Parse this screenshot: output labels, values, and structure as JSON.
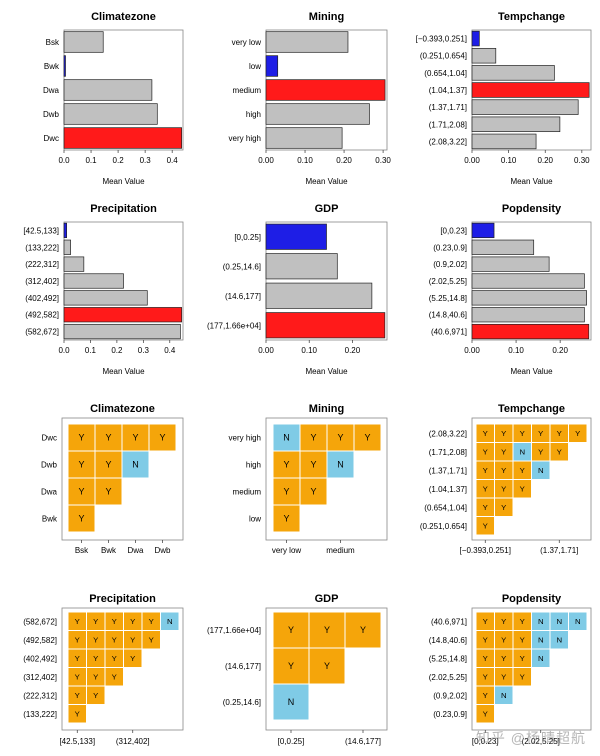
{
  "colors": {
    "gray": "#c0c0c0",
    "red": "#ff1a1a",
    "blue": "#1e1ee6",
    "orange": "#f5a50a",
    "cyan": "#7fcbe6"
  },
  "watermark": "知乎 @杨晴超航",
  "chart_data": [
    {
      "type": "bar",
      "orientation": "horizontal",
      "title": "Climatezone",
      "xlabel": "Mean Value",
      "categories": [
        "Bsk",
        "Bwk",
        "Dwa",
        "Dwb",
        "Dwc"
      ],
      "values": [
        0.145,
        0.005,
        0.325,
        0.345,
        0.435
      ],
      "highlight": [
        "gray",
        "blue",
        "gray",
        "gray",
        "red"
      ],
      "xlim": [
        0,
        0.44
      ],
      "xticks": [
        "0.0",
        "0.1",
        "0.2",
        "0.3",
        "0.4"
      ],
      "xtick_values": [
        0,
        0.1,
        0.2,
        0.3,
        0.4
      ]
    },
    {
      "type": "bar",
      "orientation": "horizontal",
      "title": "Mining",
      "xlabel": "Mean Value",
      "categories": [
        "very low",
        "low",
        "medium",
        "high",
        "very high"
      ],
      "values": [
        0.21,
        0.03,
        0.305,
        0.265,
        0.195
      ],
      "highlight": [
        "gray",
        "blue",
        "red",
        "gray",
        "gray"
      ],
      "xlim": [
        0,
        0.31
      ],
      "xticks": [
        "0.00",
        "0.10",
        "0.20",
        "0.30"
      ],
      "xtick_values": [
        0,
        0.1,
        0.2,
        0.3
      ]
    },
    {
      "type": "bar",
      "orientation": "horizontal",
      "title": "Tempchange",
      "xlabel": "Mean Value",
      "categories": [
        "[−0.393,0.251]",
        "(0.251,0.654]",
        "(0.654,1.04]",
        "(1.04,1.37]",
        "(1.37,1.71]",
        "(1.71,2.08]",
        "(2.08,3.22]"
      ],
      "values": [
        0.02,
        0.065,
        0.225,
        0.32,
        0.29,
        0.24,
        0.175
      ],
      "highlight": [
        "blue",
        "gray",
        "gray",
        "red",
        "gray",
        "gray",
        "gray"
      ],
      "xlim": [
        0,
        0.325
      ],
      "xticks": [
        "0.00",
        "0.10",
        "0.20",
        "0.30"
      ],
      "xtick_values": [
        0,
        0.1,
        0.2,
        0.3
      ]
    },
    {
      "type": "bar",
      "orientation": "horizontal",
      "title": "Precipitation",
      "xlabel": "Mean Value",
      "categories": [
        "[42.5,133]",
        "(133,222]",
        "(222,312]",
        "(312,402]",
        "(402,492]",
        "(492,582]",
        "(582,672]"
      ],
      "values": [
        0.01,
        0.025,
        0.075,
        0.225,
        0.315,
        0.445,
        0.44
      ],
      "highlight": [
        "blue",
        "gray",
        "gray",
        "gray",
        "gray",
        "red",
        "gray"
      ],
      "xlim": [
        0,
        0.45
      ],
      "xticks": [
        "0.0",
        "0.1",
        "0.2",
        "0.3",
        "0.4"
      ],
      "xtick_values": [
        0,
        0.1,
        0.2,
        0.3,
        0.4
      ]
    },
    {
      "type": "bar",
      "orientation": "horizontal",
      "title": "GDP",
      "xlabel": "Mean Value",
      "categories": [
        "[0,0.25]",
        "(0.25,14.6]",
        "(14.6,177]",
        "(177,1.66e+04]"
      ],
      "values": [
        0.14,
        0.165,
        0.245,
        0.275
      ],
      "highlight": [
        "blue",
        "gray",
        "gray",
        "red"
      ],
      "xlim": [
        0,
        0.28
      ],
      "xticks": [
        "0.00",
        "0.10",
        "0.20"
      ],
      "xtick_values": [
        0,
        0.1,
        0.2
      ]
    },
    {
      "type": "bar",
      "orientation": "horizontal",
      "title": "Popdensity",
      "xlabel": "Mean Value",
      "categories": [
        "[0,0.23]",
        "(0.23,0.9]",
        "(0.9,2.02]",
        "(2.02,5.25]",
        "(5.25,14.8]",
        "(14.8,40.6]",
        "(40.6,971]"
      ],
      "values": [
        0.05,
        0.14,
        0.175,
        0.255,
        0.26,
        0.255,
        0.265
      ],
      "highlight": [
        "blue",
        "gray",
        "gray",
        "gray",
        "gray",
        "gray",
        "red"
      ],
      "xlim": [
        0,
        0.27
      ],
      "xticks": [
        "0.00",
        "0.10",
        "0.20"
      ],
      "xtick_values": [
        0,
        0.1,
        0.2
      ]
    },
    {
      "type": "heatmap",
      "title": "Climatezone",
      "rows": [
        "Dwc",
        "Dwb",
        "Dwa",
        "Bwk"
      ],
      "xticks": [
        "Bsk",
        "Bwk",
        "Dwa",
        "Dwb"
      ],
      "cells": [
        [
          "Y",
          "Y",
          "Y",
          "Y"
        ],
        [
          "Y",
          "Y",
          "N"
        ],
        [
          "Y",
          "Y"
        ],
        [
          "Y"
        ]
      ]
    },
    {
      "type": "heatmap",
      "title": "Mining",
      "rows": [
        "very high",
        "high",
        "medium",
        "low"
      ],
      "xticks": [
        "very low",
        "medium"
      ],
      "cells": [
        [
          "N",
          "Y",
          "Y",
          "Y"
        ],
        [
          "Y",
          "Y",
          "N"
        ],
        [
          "Y",
          "Y"
        ],
        [
          "Y"
        ]
      ]
    },
    {
      "type": "heatmap",
      "title": "Tempchange",
      "rows": [
        "(2.08,3.22]",
        "(1.71,2.08]",
        "(1.37,1.71]",
        "(1.04,1.37]",
        "(0.654,1.04]",
        "(0.251,0.654]"
      ],
      "xticks": [
        "[−0.393,0.251]",
        "(1.37,1.71]"
      ],
      "cells": [
        [
          "Y",
          "Y",
          "Y",
          "Y",
          "Y",
          "Y"
        ],
        [
          "Y",
          "Y",
          "N",
          "Y",
          "Y"
        ],
        [
          "Y",
          "Y",
          "Y",
          "N"
        ],
        [
          "Y",
          "Y",
          "Y"
        ],
        [
          "Y",
          "Y"
        ],
        [
          "Y"
        ]
      ]
    },
    {
      "type": "heatmap",
      "title": "Precipitation",
      "rows": [
        "(582,672]",
        "(492,582]",
        "(402,492]",
        "(312,402]",
        "(222,312]",
        "(133,222]"
      ],
      "xticks": [
        "[42.5,133]",
        "(312,402]"
      ],
      "cells": [
        [
          "Y",
          "Y",
          "Y",
          "Y",
          "Y",
          "N"
        ],
        [
          "Y",
          "Y",
          "Y",
          "Y",
          "Y"
        ],
        [
          "Y",
          "Y",
          "Y",
          "Y"
        ],
        [
          "Y",
          "Y",
          "Y"
        ],
        [
          "Y",
          "Y"
        ],
        [
          "Y"
        ]
      ]
    },
    {
      "type": "heatmap",
      "title": "GDP",
      "rows": [
        "(177,1.66e+04]",
        "(14.6,177]",
        "(0.25,14.6]"
      ],
      "xticks": [
        "[0,0.25]",
        "(14.6,177]"
      ],
      "cells": [
        [
          "Y",
          "Y",
          "Y"
        ],
        [
          "Y",
          "Y"
        ],
        [
          "N"
        ]
      ]
    },
    {
      "type": "heatmap",
      "title": "Popdensity",
      "rows": [
        "(40.6,971]",
        "(14.8,40.6]",
        "(5.25,14.8]",
        "(2.02,5.25]",
        "(0.9,2.02]",
        "(0.23,0.9]"
      ],
      "xticks": [
        "[0,0.23]",
        "(2.02,5.25]"
      ],
      "cells": [
        [
          "Y",
          "Y",
          "Y",
          "N",
          "N",
          "N"
        ],
        [
          "Y",
          "Y",
          "Y",
          "N",
          "N"
        ],
        [
          "Y",
          "Y",
          "Y",
          "N"
        ],
        [
          "Y",
          "Y",
          "Y"
        ],
        [
          "Y",
          "N"
        ],
        [
          "Y"
        ]
      ]
    }
  ]
}
